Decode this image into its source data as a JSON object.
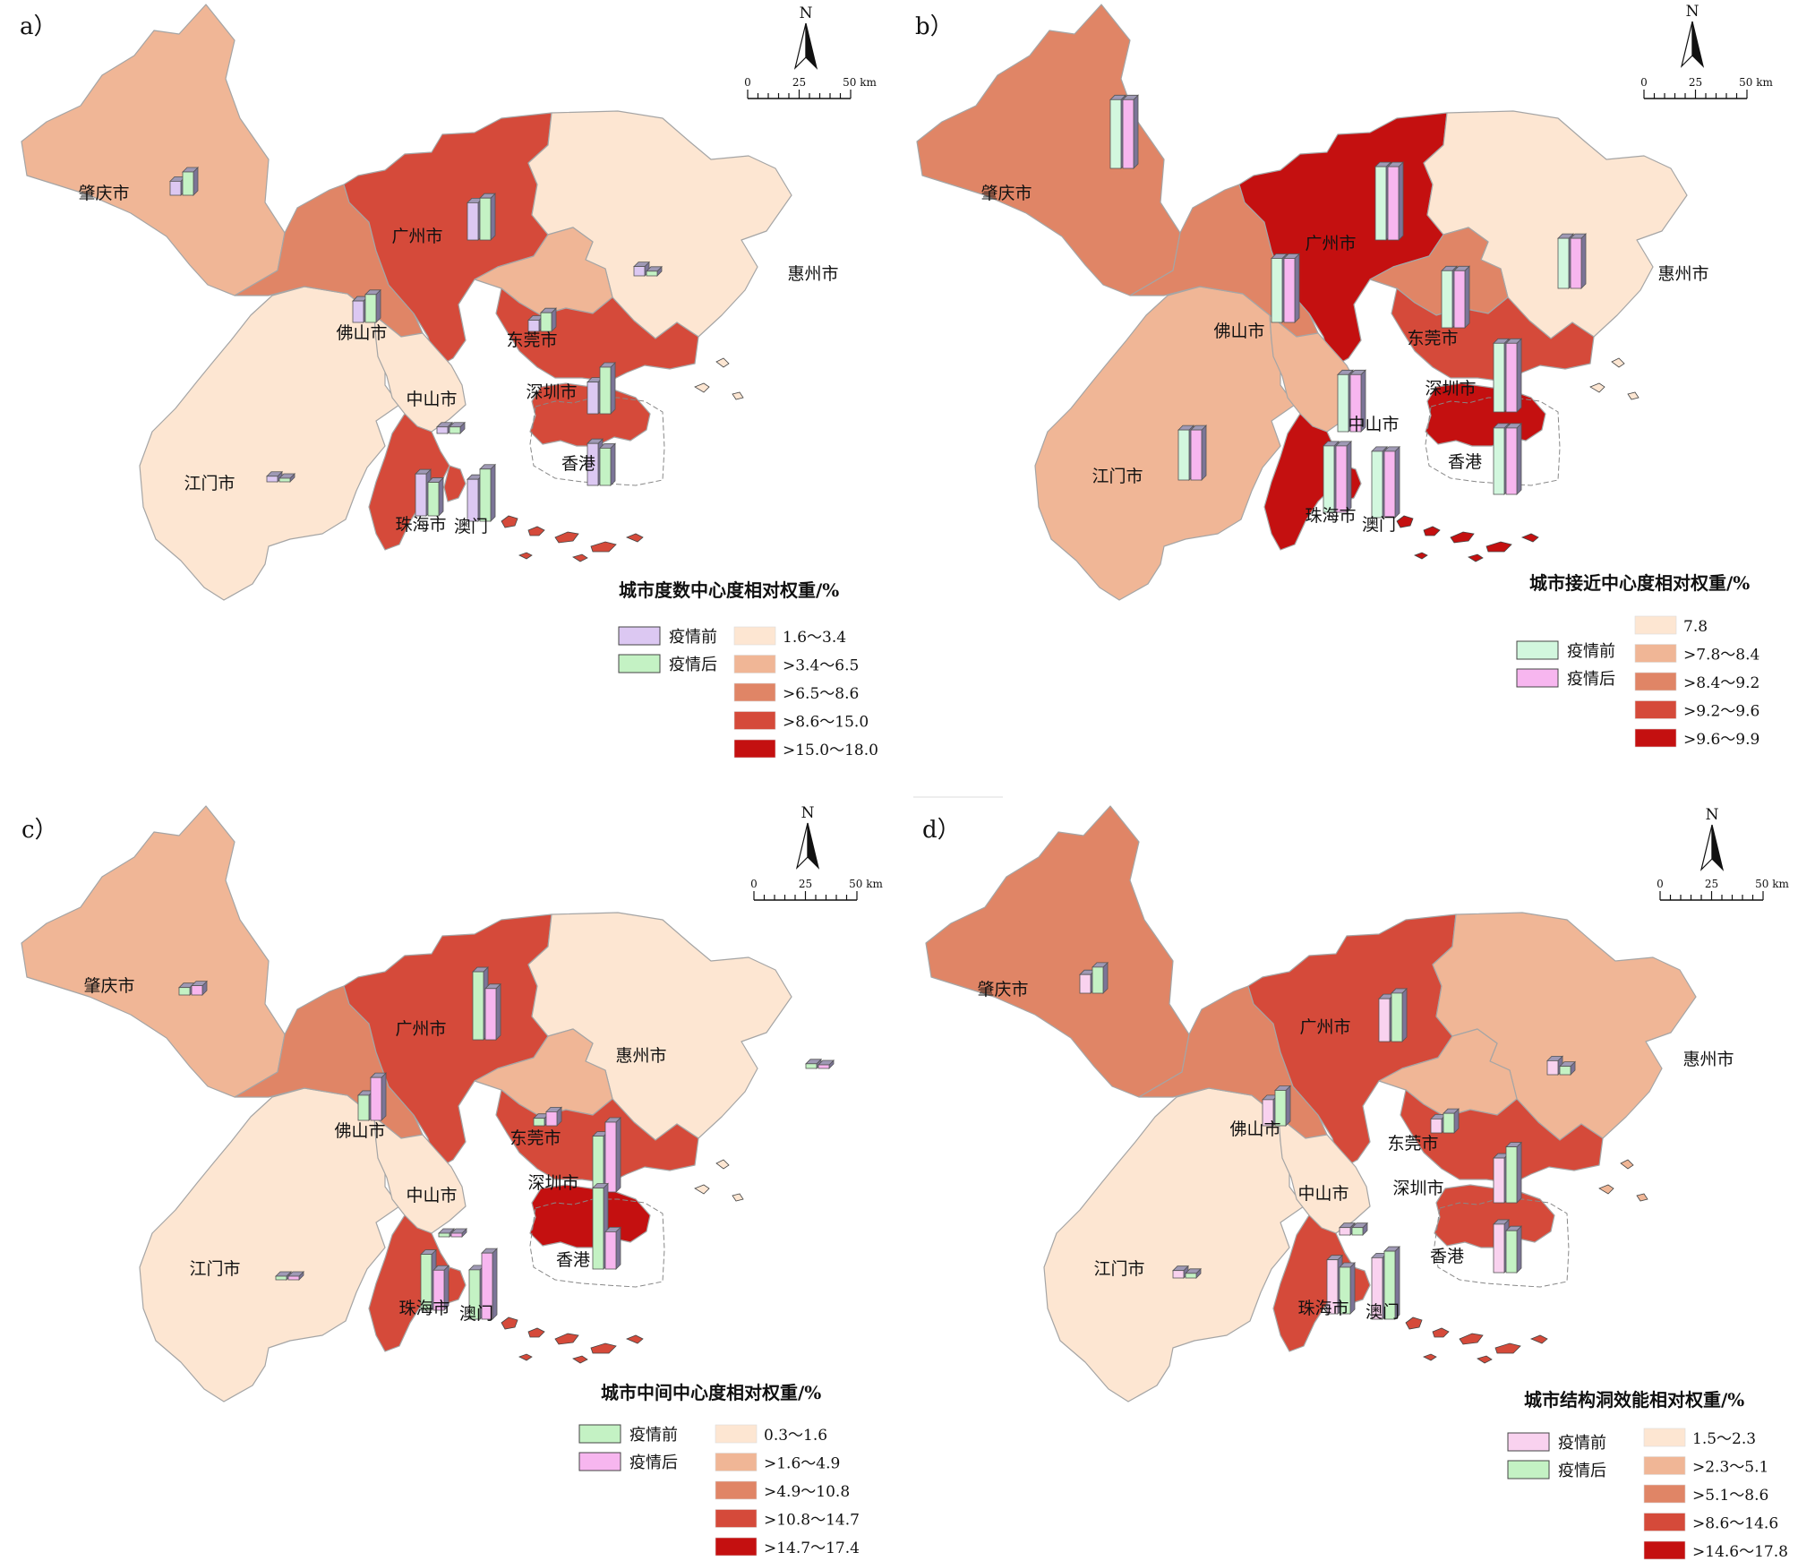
{
  "colors": {
    "boundary": "#a5a5a5",
    "outline": "#444444",
    "text": "#111111",
    "bar_purple": "#dcc8f2",
    "bar_green": "#c4f2c4",
    "bar_pink": "#f7b6ef",
    "bar_mint": "#d2f7de",
    "bar_lightpink": "#f9d2ef",
    "bar_side": "#7b7497",
    "bar_top": "#9f99b5"
  },
  "panels": [
    {
      "key": "a",
      "label": "a）",
      "north_label": "N",
      "scale": {
        "ticks": [
          "0",
          "25",
          "50 km"
        ]
      },
      "legend_title": "城市度数中心度相对权重/%",
      "series": [
        {
          "name": "疫情前",
          "color": "#dcc8f2"
        },
        {
          "name": "疫情后",
          "color": "#c4f2c4"
        }
      ],
      "classes": [
        {
          "label": "1.6～3.4",
          "color": "#fde6d2"
        },
        {
          "label": ">3.4～6.5",
          "color": "#f0b696"
        },
        {
          "label": ">6.5～8.6",
          "color": "#e08566"
        },
        {
          "label": ">8.6～15.0",
          "color": "#d54a3a"
        },
        {
          "label": ">15.0～18.0",
          "color": "#c41010"
        }
      ],
      "city_class": {
        "zhaoqing": 1,
        "guangzhou": 3,
        "foshan": 2,
        "huizhou": 0,
        "dongguan": 1,
        "zhongshan": 0,
        "jiangmen": 0,
        "shenzhen": 3,
        "zhuhai": 3,
        "macau": 3,
        "hongkong": 3
      },
      "bars": {
        "zhaoqing": [
          3.0,
          5.0
        ],
        "guangzhou": [
          8.0,
          9.0
        ],
        "foshan": [
          4.6,
          6.0
        ],
        "huizhou": [
          2.0,
          1.0
        ],
        "dongguan": [
          2.4,
          4.0
        ],
        "zhongshan": [
          1.4,
          1.4
        ],
        "jiangmen": [
          1.2,
          0.6
        ],
        "shenzhen": [
          6.8,
          10.0
        ],
        "zhuhai": [
          9.0,
          7.2
        ],
        "macau": [
          9.0,
          11.2
        ],
        "hongkong": [
          9.0,
          8.0
        ]
      }
    },
    {
      "key": "b",
      "label": "b）",
      "north_label": "N",
      "scale": {
        "ticks": [
          "0",
          "25",
          "50 km"
        ]
      },
      "legend_title": "城市接近中心度相对权重/%",
      "series": [
        {
          "name": "疫情前",
          "color": "#d2f7de"
        },
        {
          "name": "疫情后",
          "color": "#f7b6ef"
        }
      ],
      "classes": [
        {
          "label": "7.8",
          "color": "#fde6d2"
        },
        {
          "label": ">7.8～8.4",
          "color": "#f0b696"
        },
        {
          "label": ">8.4～9.2",
          "color": "#e08566"
        },
        {
          "label": ">9.2～9.6",
          "color": "#d54a3a"
        },
        {
          "label": ">9.6～9.9",
          "color": "#c41010"
        }
      ],
      "city_class": {
        "zhaoqing": 2,
        "guangzhou": 4,
        "foshan": 2,
        "huizhou": 0,
        "dongguan": 2,
        "zhongshan": 1,
        "jiangmen": 1,
        "shenzhen": 3,
        "zhuhai": 4,
        "macau": 4,
        "hongkong": 4
      },
      "bars": {
        "zhaoqing": [
          9.4,
          9.4
        ],
        "guangzhou": [
          9.8,
          9.8
        ],
        "foshan": [
          9.0,
          9.0
        ],
        "huizhou": [
          7.8,
          7.8
        ],
        "dongguan": [
          8.4,
          8.4
        ],
        "zhongshan": [
          8.4,
          8.4
        ],
        "jiangmen": [
          7.8,
          7.8
        ],
        "shenzhen": [
          9.4,
          9.4
        ],
        "zhuhai": [
          9.2,
          9.2
        ],
        "macau": [
          9.2,
          9.2
        ],
        "hongkong": [
          9.2,
          9.2
        ]
      }
    },
    {
      "key": "c",
      "label": "c）",
      "north_label": "N",
      "scale": {
        "ticks": [
          "0",
          "25",
          "50 km"
        ]
      },
      "legend_title": "城市中间中心度相对权重/%",
      "series": [
        {
          "name": "疫情前",
          "color": "#c4f2c4"
        },
        {
          "name": "疫情后",
          "color": "#f7b6ef"
        }
      ],
      "classes": [
        {
          "label": "0.3～1.6",
          "color": "#fde6d2"
        },
        {
          "label": ">1.6～4.9",
          "color": "#f0b696"
        },
        {
          "label": ">4.9～10.8",
          "color": "#e08566"
        },
        {
          "label": ">10.8～14.7",
          "color": "#d54a3a"
        },
        {
          "label": ">14.7～17.4",
          "color": "#c41010"
        }
      ],
      "city_class": {
        "zhaoqing": 1,
        "guangzhou": 3,
        "foshan": 2,
        "huizhou": 0,
        "dongguan": 1,
        "zhongshan": 0,
        "jiangmen": 0,
        "shenzhen": 3,
        "zhuhai": 3,
        "macau": 3,
        "hongkong": 4
      },
      "bars": {
        "zhaoqing": [
          1.6,
          2.0
        ],
        "guangzhou": [
          14.6,
          11.0
        ],
        "foshan": [
          5.4,
          9.2
        ],
        "huizhou": [
          1.0,
          0.4
        ],
        "dongguan": [
          1.6,
          3.0
        ],
        "zhongshan": [
          0.6,
          0.4
        ],
        "jiangmen": [
          0.3,
          0.3
        ],
        "shenzhen": [
          12.0,
          15.0
        ],
        "zhuhai": [
          12.0,
          8.6
        ],
        "macau": [
          10.6,
          14.2
        ],
        "hongkong": [
          17.4,
          8.0
        ]
      }
    },
    {
      "key": "d",
      "label": "d）",
      "north_label": "N",
      "scale": {
        "ticks": [
          "0",
          "25",
          "50 km"
        ]
      },
      "legend_title": "城市结构洞效能相对权重/%",
      "series": [
        {
          "name": "疫情前",
          "color": "#f9d2ef"
        },
        {
          "name": "疫情后",
          "color": "#c4f2c4"
        }
      ],
      "classes": [
        {
          "label": "1.5～2.3",
          "color": "#fde6d2"
        },
        {
          "label": ">2.3～5.1",
          "color": "#f0b696"
        },
        {
          "label": ">5.1～8.6",
          "color": "#e08566"
        },
        {
          "label": ">8.6～14.6",
          "color": "#d54a3a"
        },
        {
          "label": ">14.6～17.8",
          "color": "#c41010"
        }
      ],
      "city_class": {
        "zhaoqing": 2,
        "guangzhou": 3,
        "foshan": 2,
        "huizhou": 1,
        "dongguan": 1,
        "zhongshan": 0,
        "jiangmen": 0,
        "shenzhen": 3,
        "zhuhai": 3,
        "macau": 3,
        "hongkong": 3
      },
      "bars": {
        "zhaoqing": [
          4.0,
          5.6
        ],
        "guangzhou": [
          9.2,
          10.4
        ],
        "foshan": [
          5.6,
          7.6
        ],
        "huizhou": [
          3.0,
          1.8
        ],
        "dongguan": [
          3.0,
          4.2
        ],
        "zhongshan": [
          1.6,
          1.6
        ],
        "jiangmen": [
          1.6,
          1.0
        ],
        "shenzhen": [
          9.6,
          12.0
        ],
        "zhuhai": [
          11.6,
          10.0
        ],
        "macau": [
          13.2,
          14.6
        ],
        "hongkong": [
          10.4,
          9.0
        ]
      }
    }
  ],
  "city_names": {
    "zhaoqing": "肇庆市",
    "guangzhou": "广州市",
    "foshan": "佛山市",
    "huizhou": "惠州市",
    "dongguan": "东莞市",
    "zhongshan": "中山市",
    "jiangmen": "江门市",
    "shenzhen": "深圳市",
    "zhuhai": "珠海市",
    "macau": "澳门",
    "hongkong": "香港"
  }
}
